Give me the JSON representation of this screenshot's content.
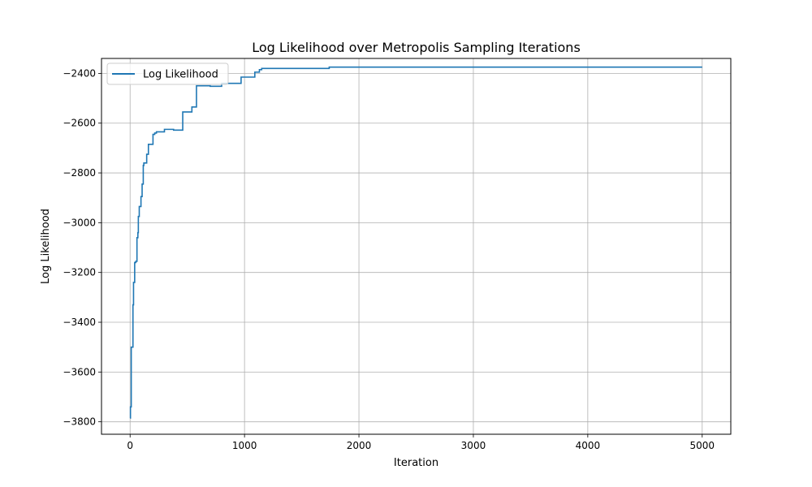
{
  "chart_data": {
    "type": "line",
    "title": "Log Likelihood over Metropolis Sampling Iterations",
    "xlabel": "Iteration",
    "ylabel": "Log Likelihood",
    "xlim": [
      -250,
      5250
    ],
    "ylim": [
      -3850,
      -2340
    ],
    "xticks": [
      0,
      1000,
      2000,
      3000,
      4000,
      5000
    ],
    "yticks": [
      -3800,
      -3600,
      -3400,
      -3200,
      -3000,
      -2800,
      -2600,
      -2400
    ],
    "grid": true,
    "legend": "upper-left",
    "series": [
      {
        "name": "Log Likelihood",
        "color": "#1f77b4",
        "step": true,
        "x": [
          0,
          3,
          10,
          25,
          30,
          40,
          50,
          60,
          68,
          72,
          80,
          95,
          105,
          115,
          120,
          145,
          160,
          200,
          215,
          230,
          300,
          380,
          460,
          540,
          580,
          700,
          800,
          970,
          1090,
          1130,
          1150,
          1740,
          5000
        ],
        "y": [
          -3785,
          -3740,
          -3500,
          -3330,
          -3240,
          -3160,
          -3155,
          -3060,
          -3040,
          -2975,
          -2935,
          -2895,
          -2845,
          -2770,
          -2760,
          -2725,
          -2685,
          -2645,
          -2640,
          -2635,
          -2625,
          -2628,
          -2555,
          -2535,
          -2450,
          -2452,
          -2440,
          -2415,
          -2395,
          -2385,
          -2380,
          -2375,
          -2375
        ]
      }
    ]
  }
}
